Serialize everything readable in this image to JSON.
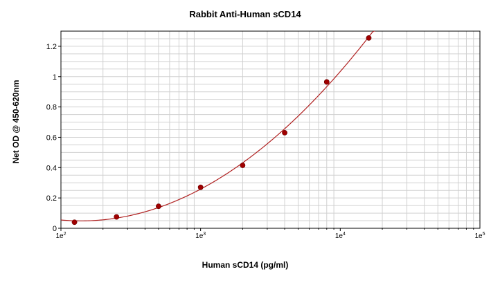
{
  "chart_data": {
    "type": "scatter",
    "title": "Rabbit Anti-Human sCD14",
    "xlabel": "Human sCD14 (pg/ml)",
    "ylabel": "Net OD @ 450-620nm",
    "x_scale": "log",
    "xlim": [
      100,
      100000
    ],
    "ylim": [
      0,
      1.3
    ],
    "grid": true,
    "x_ticks": [
      {
        "value": 100,
        "mantissa": "1e",
        "exponent": "2"
      },
      {
        "value": 1000,
        "mantissa": "1e",
        "exponent": "3"
      },
      {
        "value": 10000,
        "mantissa": "1e",
        "exponent": "4"
      },
      {
        "value": 100000,
        "mantissa": "1e",
        "exponent": "5"
      }
    ],
    "y_ticks": [
      {
        "value": 0,
        "label": "0"
      },
      {
        "value": 0.2,
        "label": "0.2"
      },
      {
        "value": 0.4,
        "label": "0.4"
      },
      {
        "value": 0.6,
        "label": "0.6"
      },
      {
        "value": 0.8,
        "label": "0.8"
      },
      {
        "value": 1.0,
        "label": "1"
      },
      {
        "value": 1.2,
        "label": "1.2"
      }
    ],
    "series": [
      {
        "x": [
          125,
          250,
          500,
          1000,
          2000,
          4000,
          8000,
          16000
        ],
        "y": [
          0.04,
          0.075,
          0.145,
          0.27,
          0.415,
          0.63,
          0.965,
          1.255
        ],
        "fit": "curve"
      }
    ],
    "colors": {
      "point": "#a00000",
      "curve": "#b02020",
      "grid": "#d0d0d0",
      "axis": "#000000"
    }
  }
}
